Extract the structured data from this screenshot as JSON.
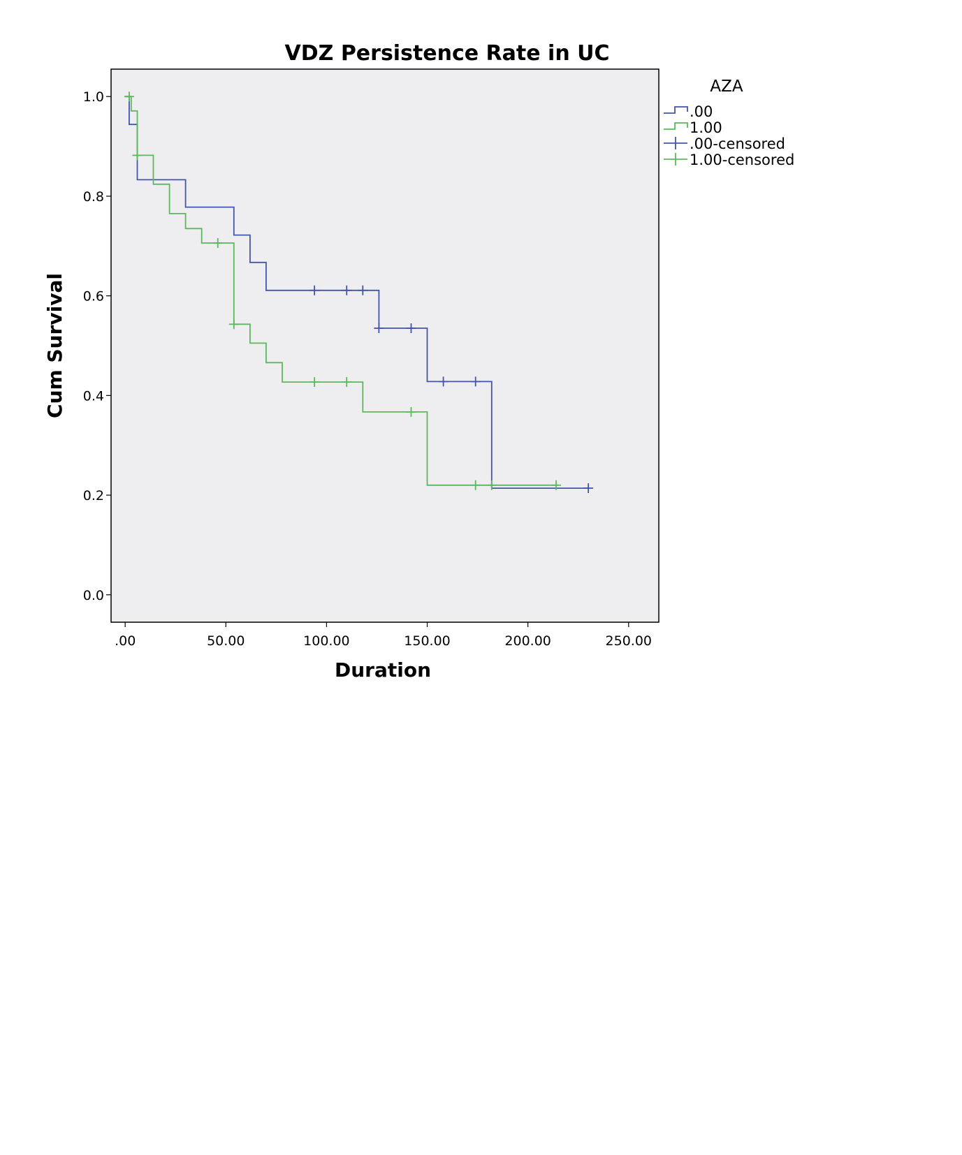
{
  "chart_data": {
    "type": "line",
    "title": "VDZ Persistence Rate in UC",
    "xlabel": "Duration",
    "ylabel": "Cum Survival",
    "xlim": [
      -7,
      265
    ],
    "ylim": [
      -0.055,
      1.055
    ],
    "x_ticks": [
      0,
      50,
      100,
      150,
      200,
      250
    ],
    "x_tick_labels": [
      ".00",
      "50.00",
      "100.00",
      "150.00",
      "200.00",
      "250.00"
    ],
    "y_ticks": [
      0.0,
      0.2,
      0.4,
      0.6,
      0.8,
      1.0
    ],
    "y_tick_labels": [
      "0.0",
      "0.2",
      "0.4",
      "0.6",
      "0.8",
      "1.0"
    ],
    "grid": false,
    "background_color": "#eeeef0",
    "legend": {
      "title": "AZA",
      "placement": "right",
      "entries": [
        ".00",
        "1.00",
        ".00-censored",
        "1.00-censored"
      ]
    },
    "series": [
      {
        "name": ".00",
        "color": "#4454a8",
        "step": [
          [
            0,
            1.0
          ],
          [
            2,
            1.0
          ],
          [
            2,
            0.944
          ],
          [
            6,
            0.944
          ],
          [
            6,
            0.833
          ],
          [
            30,
            0.833
          ],
          [
            30,
            0.778
          ],
          [
            54,
            0.778
          ],
          [
            54,
            0.722
          ],
          [
            62,
            0.722
          ],
          [
            62,
            0.667
          ],
          [
            70,
            0.667
          ],
          [
            70,
            0.611
          ],
          [
            126,
            0.611
          ],
          [
            126,
            0.535
          ],
          [
            150,
            0.535
          ],
          [
            150,
            0.428
          ],
          [
            182,
            0.428
          ],
          [
            182,
            0.214
          ],
          [
            230,
            0.214
          ]
        ],
        "censored": [
          [
            94,
            0.611
          ],
          [
            110,
            0.611
          ],
          [
            118,
            0.611
          ],
          [
            126,
            0.535
          ],
          [
            142,
            0.535
          ],
          [
            158,
            0.428
          ],
          [
            174,
            0.428
          ],
          [
            230,
            0.214
          ]
        ]
      },
      {
        "name": "1.00",
        "color": "#5cb85c",
        "step": [
          [
            0,
            1.0
          ],
          [
            3,
            1.0
          ],
          [
            3,
            0.971
          ],
          [
            6,
            0.971
          ],
          [
            6,
            0.882
          ],
          [
            14,
            0.882
          ],
          [
            14,
            0.824
          ],
          [
            22,
            0.824
          ],
          [
            22,
            0.765
          ],
          [
            30,
            0.765
          ],
          [
            30,
            0.735
          ],
          [
            38,
            0.735
          ],
          [
            38,
            0.706
          ],
          [
            54,
            0.706
          ],
          [
            54,
            0.543
          ],
          [
            62,
            0.543
          ],
          [
            62,
            0.505
          ],
          [
            70,
            0.505
          ],
          [
            70,
            0.466
          ],
          [
            78,
            0.466
          ],
          [
            78,
            0.427
          ],
          [
            118,
            0.427
          ],
          [
            118,
            0.367
          ],
          [
            150,
            0.367
          ],
          [
            150,
            0.22
          ],
          [
            215,
            0.22
          ]
        ],
        "censored": [
          [
            2,
            1.0
          ],
          [
            6,
            0.882
          ],
          [
            46,
            0.706
          ],
          [
            54,
            0.543
          ],
          [
            94,
            0.427
          ],
          [
            110,
            0.427
          ],
          [
            142,
            0.367
          ],
          [
            174,
            0.22
          ],
          [
            182,
            0.22
          ],
          [
            214,
            0.22
          ]
        ]
      }
    ]
  }
}
